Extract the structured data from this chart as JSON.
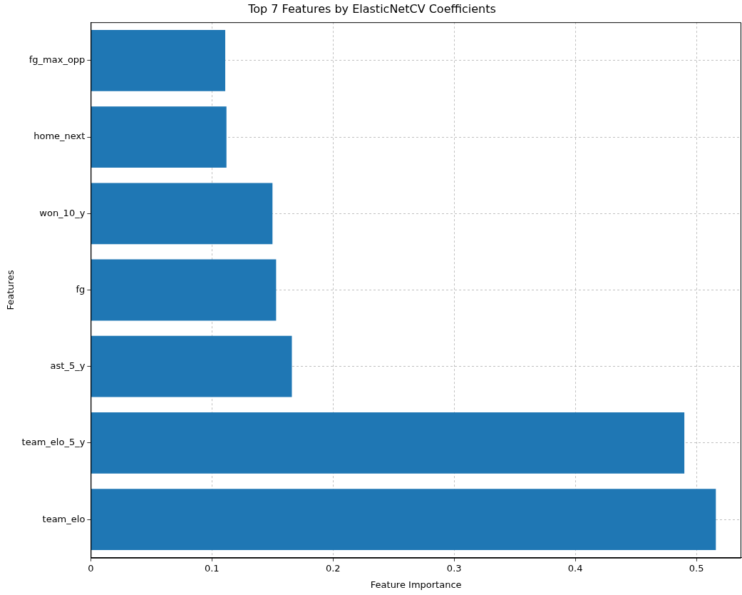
{
  "chart_data": {
    "type": "bar",
    "orientation": "horizontal",
    "title": "Top 7 Features by ElasticNetCV Coefficients",
    "xlabel": "Feature Importance",
    "ylabel": "Features",
    "categories": [
      "fg_max_opp",
      "home_next",
      "won_10_y",
      "fg",
      "ast_5_y",
      "team_elo_5_y",
      "team_elo"
    ],
    "values": [
      0.111,
      0.112,
      0.15,
      0.153,
      0.166,
      0.49,
      0.516
    ],
    "color": "#1f77b4",
    "xlim": [
      0,
      0.537
    ],
    "xticks": [
      0,
      0.1,
      0.2,
      0.3,
      0.4,
      0.5
    ],
    "grid": true,
    "line_style": "dashed",
    "legend": false
  }
}
